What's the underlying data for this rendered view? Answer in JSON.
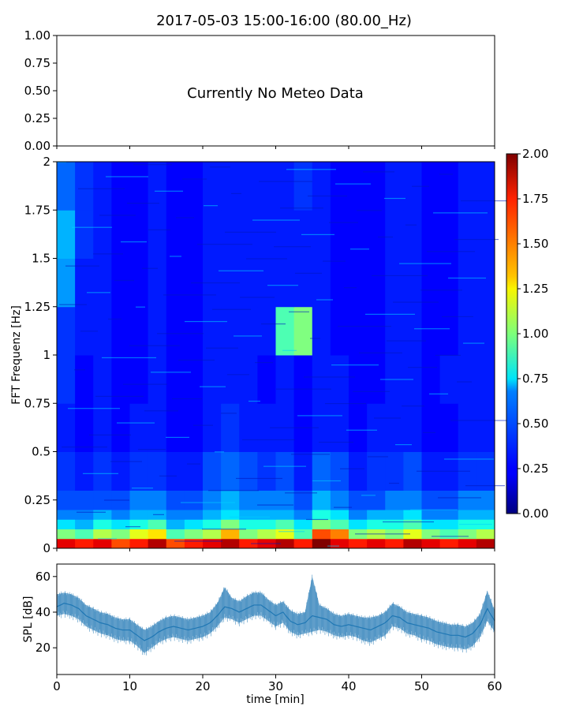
{
  "title": "2017-05-03 15:00-16:00 (80.00_Hz)",
  "chart_data": [
    {
      "type": "line",
      "panel": "meteo",
      "annotation": "Currently No Meteo Data",
      "ylim": [
        0,
        1
      ],
      "yticks": [
        "0.00",
        "0.25",
        "0.50",
        "0.75",
        "1.00"
      ],
      "xlim": [
        0,
        60
      ],
      "series": []
    },
    {
      "type": "heatmap",
      "panel": "spectrogram",
      "ylabel": "FFT Frequenz [Hz]",
      "xlim": [
        0,
        60
      ],
      "ylim": [
        0,
        2
      ],
      "yticks": [
        "0",
        "0.25",
        "0.5",
        "0.75",
        "1",
        "1.25",
        "1.5",
        "1.75",
        "2"
      ],
      "colorbar": {
        "colormap": "jet",
        "range": [
          0,
          2
        ],
        "ticks": [
          "0.00",
          "0.25",
          "0.50",
          "0.75",
          "1.00",
          "1.25",
          "1.50",
          "1.75",
          "2.00"
        ]
      },
      "x_time_bins": [
        0,
        2.5,
        5,
        7.5,
        10,
        12.5,
        15,
        17.5,
        20,
        22.5,
        25,
        27.5,
        30,
        32.5,
        35,
        37.5,
        40,
        42.5,
        45,
        47.5,
        50,
        52.5,
        55,
        57.5
      ],
      "y_freq_bins": [
        0,
        0.05,
        0.1,
        0.15,
        0.2,
        0.3,
        0.5,
        0.75,
        1.0,
        1.25,
        1.5,
        1.75
      ],
      "values": [
        [
          1.8,
          1.7,
          1.8,
          1.6,
          1.7,
          1.9,
          1.6,
          1.7,
          1.8,
          1.9,
          1.7,
          1.8,
          1.9,
          1.7,
          2.0,
          1.8,
          1.7,
          1.8,
          1.7,
          1.9,
          1.8,
          1.7,
          1.8,
          1.9
        ],
        [
          1.0,
          0.9,
          1.1,
          1.0,
          1.2,
          1.3,
          0.9,
          1.0,
          1.1,
          1.4,
          1.0,
          1.1,
          1.2,
          0.9,
          1.6,
          1.5,
          1.0,
          1.1,
          1.0,
          1.2,
          1.0,
          0.9,
          1.0,
          1.1
        ],
        [
          0.7,
          0.6,
          0.8,
          0.7,
          0.8,
          0.9,
          0.6,
          0.7,
          0.8,
          1.0,
          0.8,
          0.8,
          0.9,
          0.7,
          1.0,
          0.9,
          0.7,
          0.8,
          0.8,
          0.9,
          0.7,
          0.7,
          0.8,
          0.8
        ],
        [
          0.5,
          0.5,
          0.6,
          0.5,
          0.6,
          0.6,
          0.5,
          0.5,
          0.6,
          0.7,
          0.6,
          0.6,
          0.6,
          0.5,
          0.8,
          0.7,
          0.5,
          0.6,
          0.6,
          0.7,
          0.5,
          0.5,
          0.6,
          0.6
        ],
        [
          0.4,
          0.4,
          0.4,
          0.4,
          0.5,
          0.5,
          0.4,
          0.4,
          0.5,
          0.6,
          0.5,
          0.5,
          0.5,
          0.4,
          0.6,
          0.5,
          0.4,
          0.4,
          0.5,
          0.5,
          0.4,
          0.4,
          0.5,
          0.5
        ],
        [
          0.35,
          0.3,
          0.35,
          0.3,
          0.35,
          0.35,
          0.3,
          0.3,
          0.4,
          0.45,
          0.4,
          0.35,
          0.4,
          0.3,
          0.45,
          0.4,
          0.3,
          0.35,
          0.35,
          0.4,
          0.3,
          0.3,
          0.35,
          0.35
        ],
        [
          0.3,
          0.25,
          0.3,
          0.25,
          0.3,
          0.3,
          0.25,
          0.25,
          0.3,
          0.35,
          0.3,
          0.3,
          0.3,
          0.25,
          0.3,
          0.3,
          0.25,
          0.3,
          0.3,
          0.3,
          0.25,
          0.25,
          0.3,
          0.3
        ],
        [
          0.35,
          0.25,
          0.3,
          0.25,
          0.25,
          0.3,
          0.25,
          0.25,
          0.3,
          0.3,
          0.3,
          0.25,
          0.3,
          0.25,
          0.3,
          0.3,
          0.25,
          0.25,
          0.3,
          0.3,
          0.25,
          0.3,
          0.3,
          0.3
        ],
        [
          0.35,
          0.3,
          0.3,
          0.25,
          0.25,
          0.3,
          0.25,
          0.25,
          0.3,
          0.3,
          0.3,
          0.3,
          0.9,
          1.0,
          0.3,
          0.25,
          0.25,
          0.25,
          0.3,
          0.3,
          0.25,
          0.25,
          0.3,
          0.3
        ],
        [
          0.55,
          0.3,
          0.3,
          0.25,
          0.25,
          0.3,
          0.25,
          0.25,
          0.3,
          0.3,
          0.3,
          0.3,
          0.3,
          0.3,
          0.3,
          0.25,
          0.25,
          0.25,
          0.3,
          0.3,
          0.25,
          0.25,
          0.3,
          0.3
        ],
        [
          0.6,
          0.35,
          0.3,
          0.25,
          0.25,
          0.3,
          0.25,
          0.25,
          0.3,
          0.3,
          0.3,
          0.3,
          0.3,
          0.3,
          0.3,
          0.25,
          0.25,
          0.25,
          0.3,
          0.3,
          0.25,
          0.25,
          0.3,
          0.3
        ],
        [
          0.45,
          0.35,
          0.3,
          0.25,
          0.25,
          0.3,
          0.25,
          0.25,
          0.3,
          0.3,
          0.3,
          0.3,
          0.3,
          0.35,
          0.3,
          0.25,
          0.25,
          0.25,
          0.3,
          0.3,
          0.25,
          0.25,
          0.3,
          0.3
        ]
      ]
    },
    {
      "type": "line",
      "panel": "spl",
      "ylabel": "SPL [dB]",
      "xlabel": "time [min]",
      "xlim": [
        0,
        60
      ],
      "ylim": [
        5,
        67
      ],
      "yticks": [
        "20",
        "40",
        "60"
      ],
      "xticks": [
        "0",
        "10",
        "20",
        "30",
        "40",
        "50",
        "60"
      ],
      "color": "#1f77b4",
      "series": [
        {
          "x": [
            0,
            1,
            2,
            3,
            4,
            5,
            6,
            7,
            8,
            9,
            10,
            11,
            12,
            13,
            14,
            15,
            16,
            17,
            18,
            19,
            20,
            21,
            22,
            23,
            24,
            25,
            26,
            27,
            28,
            29,
            30,
            31,
            32,
            33,
            34,
            35,
            36,
            37,
            38,
            39,
            40,
            41,
            42,
            43,
            44,
            45,
            46,
            47,
            48,
            49,
            50,
            51,
            52,
            53,
            54,
            55,
            56,
            57,
            58,
            59,
            60
          ],
          "y": [
            43,
            45,
            44,
            42,
            38,
            36,
            34,
            33,
            31,
            30,
            30,
            27,
            24,
            26,
            29,
            31,
            32,
            31,
            30,
            31,
            32,
            34,
            38,
            43,
            42,
            40,
            42,
            44,
            44,
            41,
            38,
            40,
            35,
            33,
            34,
            38,
            37,
            36,
            33,
            32,
            33,
            32,
            31,
            30,
            32,
            34,
            38,
            37,
            34,
            33,
            32,
            31,
            29,
            28,
            27,
            27,
            26,
            28,
            33,
            42,
            35
          ],
          "lower": [
            38,
            39,
            38,
            36,
            32,
            30,
            28,
            27,
            25,
            24,
            24,
            21,
            17,
            20,
            23,
            25,
            26,
            25,
            24,
            25,
            26,
            28,
            32,
            37,
            36,
            34,
            36,
            38,
            38,
            35,
            32,
            34,
            29,
            27,
            28,
            29,
            30,
            29,
            27,
            26,
            27,
            26,
            24,
            23,
            25,
            27,
            32,
            31,
            28,
            27,
            25,
            24,
            22,
            21,
            20,
            20,
            19,
            21,
            26,
            35,
            29
          ],
          "upper": [
            50,
            51,
            50,
            48,
            44,
            42,
            40,
            39,
            37,
            36,
            36,
            33,
            30,
            32,
            35,
            37,
            38,
            37,
            36,
            37,
            38,
            40,
            45,
            54,
            48,
            46,
            49,
            51,
            51,
            47,
            44,
            46,
            41,
            39,
            40,
            60,
            44,
            42,
            39,
            38,
            39,
            38,
            37,
            37,
            38,
            40,
            45,
            43,
            40,
            39,
            38,
            37,
            35,
            34,
            33,
            33,
            32,
            34,
            39,
            52,
            41
          ]
        }
      ]
    }
  ]
}
